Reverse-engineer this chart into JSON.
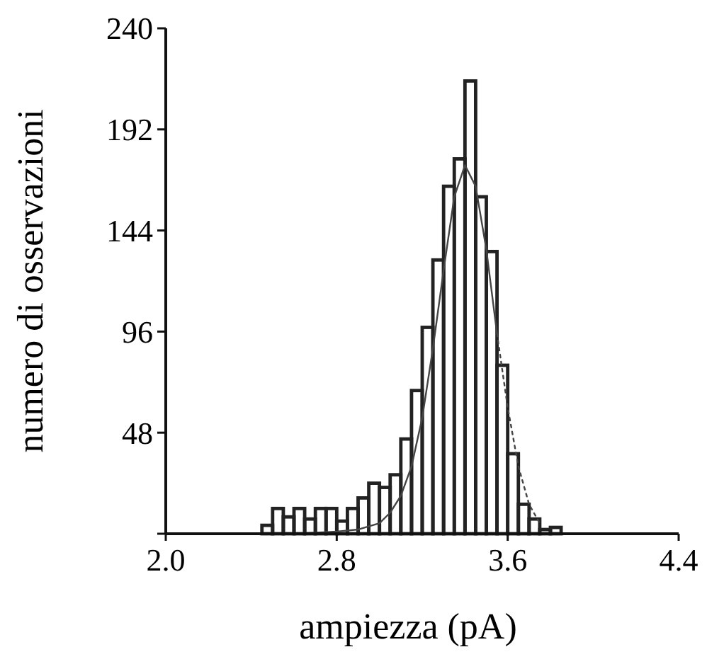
{
  "chart_data": {
    "type": "histogram",
    "xlabel": "ampiezza (pA)",
    "ylabel": "numero di osservazioni",
    "bins": [
      2.45,
      2.5,
      2.55,
      2.6,
      2.65,
      2.7,
      2.75,
      2.8,
      2.85,
      2.9,
      2.95,
      3.0,
      3.05,
      3.1,
      3.15,
      3.2,
      3.25,
      3.3,
      3.35,
      3.4,
      3.45,
      3.5,
      3.55,
      3.6,
      3.65,
      3.7,
      3.75,
      3.8,
      3.85
    ],
    "values": [
      4,
      12,
      8,
      12,
      7,
      12,
      12,
      6,
      12,
      17,
      24,
      22,
      28,
      45,
      68,
      98,
      130,
      165,
      178,
      215,
      160,
      134,
      80,
      38,
      14,
      7,
      2,
      3
    ],
    "color": "#222222",
    "series": [
      {
        "type": "line",
        "color": "#444444",
        "line_style": "solid",
        "x": [
          2.6,
          2.8,
          2.9,
          3.0,
          3.05,
          3.1,
          3.15,
          3.2,
          3.25,
          3.3,
          3.35,
          3.4,
          3.45,
          3.5,
          3.55
        ],
        "values": [
          0,
          1,
          2,
          5,
          10,
          18,
          32,
          55,
          88,
          125,
          160,
          175,
          165,
          135,
          95
        ]
      },
      {
        "type": "line",
        "color": "#444444",
        "line_style": "dotted",
        "x": [
          3.55,
          3.6,
          3.65,
          3.7,
          3.75
        ],
        "values": [
          95,
          60,
          32,
          14,
          5
        ]
      }
    ],
    "xlim": [
      2.0,
      4.4
    ],
    "xticks": [
      {
        "value": 2.0,
        "label": "2.0"
      },
      {
        "value": 2.8,
        "label": "2.8"
      },
      {
        "value": 3.6,
        "label": "3.6"
      },
      {
        "value": 4.4,
        "label": "4.4"
      }
    ],
    "ylim": [
      0,
      240
    ],
    "yticks": [
      {
        "value": 0,
        "label": null
      },
      48,
      96,
      144,
      192,
      240
    ],
    "grid": false,
    "marker": "none"
  }
}
